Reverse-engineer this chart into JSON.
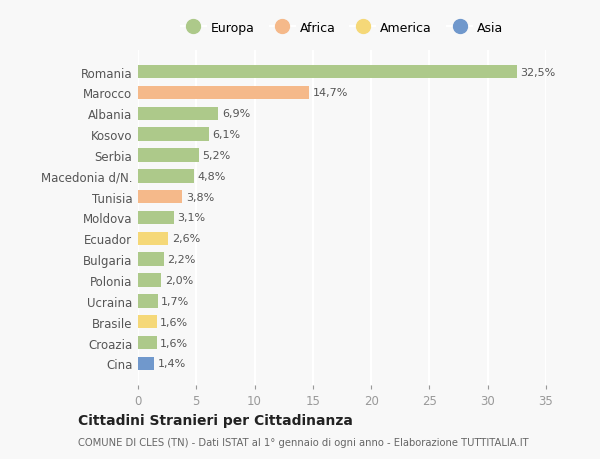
{
  "countries": [
    "Romania",
    "Marocco",
    "Albania",
    "Kosovo",
    "Serbia",
    "Macedonia d/N.",
    "Tunisia",
    "Moldova",
    "Ecuador",
    "Bulgaria",
    "Polonia",
    "Ucraina",
    "Brasile",
    "Croazia",
    "Cina"
  ],
  "values": [
    32.5,
    14.7,
    6.9,
    6.1,
    5.2,
    4.8,
    3.8,
    3.1,
    2.6,
    2.2,
    2.0,
    1.7,
    1.6,
    1.6,
    1.4
  ],
  "labels": [
    "32,5%",
    "14,7%",
    "6,9%",
    "6,1%",
    "5,2%",
    "4,8%",
    "3,8%",
    "3,1%",
    "2,6%",
    "2,2%",
    "2,0%",
    "1,7%",
    "1,6%",
    "1,6%",
    "1,4%"
  ],
  "continents": [
    "Europa",
    "Africa",
    "Europa",
    "Europa",
    "Europa",
    "Europa",
    "Africa",
    "Europa",
    "America",
    "Europa",
    "Europa",
    "Europa",
    "America",
    "Europa",
    "Asia"
  ],
  "colors": {
    "Europa": "#adc98a",
    "Africa": "#f5b98a",
    "America": "#f5d878",
    "Asia": "#7098cc"
  },
  "legend_order": [
    "Europa",
    "Africa",
    "America",
    "Asia"
  ],
  "background_color": "#f8f8f8",
  "plot_bg_color": "#f8f8f8",
  "title": "Cittadini Stranieri per Cittadinanza",
  "subtitle": "COMUNE DI CLES (TN) - Dati ISTAT al 1° gennaio di ogni anno - Elaborazione TUTTITALIA.IT",
  "xlim": [
    0,
    35
  ],
  "xticks": [
    0,
    5,
    10,
    15,
    20,
    25,
    30,
    35
  ]
}
